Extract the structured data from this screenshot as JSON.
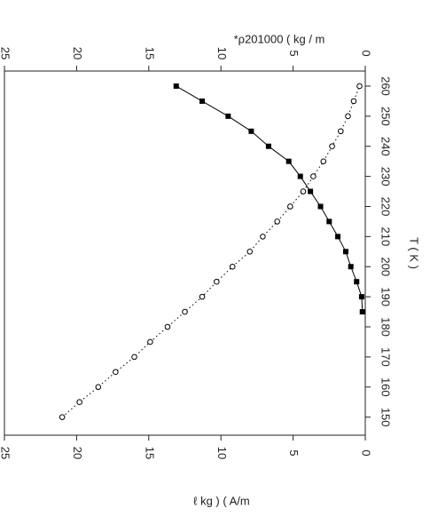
{
  "chart_data": {
    "type": "line",
    "x_label": "T ( K )",
    "y_label": "ℓ kg )   ( A/m",
    "y2_label": "*ρ201000 ( kg / m",
    "x": [
      150,
      155,
      160,
      165,
      170,
      175,
      180,
      185,
      190,
      195,
      200,
      205,
      210,
      215,
      220,
      225,
      230,
      235,
      240,
      245,
      250,
      255,
      260
    ],
    "xlim": [
      144,
      265
    ],
    "xticks": [
      150,
      160,
      170,
      180,
      190,
      200,
      210,
      220,
      230,
      240,
      250,
      260
    ],
    "ylim": [
      0,
      25
    ],
    "yticks": [
      0,
      5,
      10,
      15,
      20,
      25
    ],
    "y2lim": [
      0,
      25
    ],
    "y2ticks": [
      0,
      5,
      10,
      15,
      20,
      25
    ],
    "series": [
      {
        "color": "#000000",
        "marker": "open-circle",
        "linestyle": "dotted",
        "values": [
          21.0,
          19.8,
          18.5,
          17.3,
          16.0,
          14.9,
          13.7,
          12.5,
          11.3,
          10.3,
          9.2,
          8.0,
          7.1,
          6.1,
          5.2,
          4.3,
          3.6,
          2.9,
          2.3,
          1.7,
          1.2,
          0.8,
          0.4
        ]
      },
      {
        "color": "#000000",
        "marker": "filled-square",
        "linestyle": "solid",
        "axis": "y2",
        "values": [
          null,
          null,
          null,
          null,
          null,
          null,
          null,
          0.2,
          0.25,
          0.6,
          1.0,
          1.35,
          1.9,
          2.5,
          3.1,
          3.8,
          4.5,
          5.3,
          6.7,
          7.9,
          9.5,
          11.3,
          13.1
        ]
      }
    ]
  }
}
